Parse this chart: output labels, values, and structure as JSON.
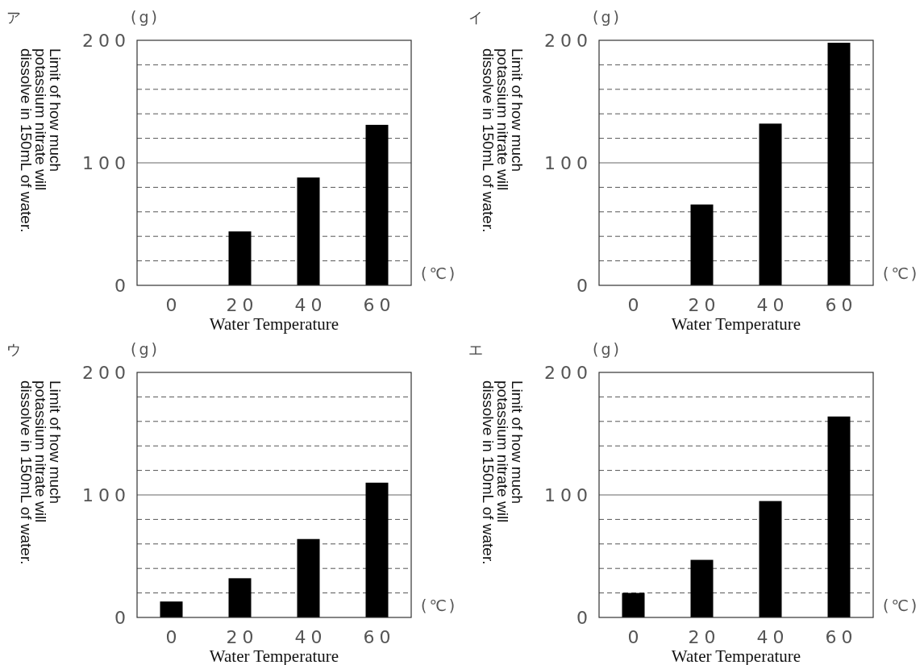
{
  "chart_data": [
    {
      "type": "bar",
      "title": "ア",
      "categories": [
        "0",
        "20",
        "40",
        "60"
      ],
      "values": [
        0,
        44,
        88,
        131
      ],
      "color": "#000000",
      "ref_lines": [
        {
          "axis": "y",
          "value": 100,
          "line_style": "solid"
        }
      ],
      "ylim": [
        0,
        200
      ],
      "yticks": [
        0,
        {
          "value": 20,
          "label": null
        },
        {
          "value": 40,
          "label": null
        },
        {
          "value": 60,
          "label": null
        },
        {
          "value": 80,
          "label": null
        },
        100,
        {
          "value": 120,
          "label": null
        },
        {
          "value": 140,
          "label": null
        },
        {
          "value": 160,
          "label": null
        },
        {
          "value": 180,
          "label": null
        },
        200
      ],
      "grid": "y",
      "xlabel": "Water Temperature",
      "ylabel": "Limit of how much potassium nitrate will dissolve in 150mL of water.",
      "annotations": [
        "(g)",
        "(℃)"
      ]
    },
    {
      "type": "bar",
      "title": "イ",
      "categories": [
        "0",
        "20",
        "40",
        "60"
      ],
      "values": [
        0,
        66,
        132,
        198
      ],
      "color": "#000000",
      "ref_lines": [
        {
          "axis": "y",
          "value": 100,
          "line_style": "solid"
        }
      ],
      "ylim": [
        0,
        200
      ],
      "yticks": [
        0,
        {
          "value": 20,
          "label": null
        },
        {
          "value": 40,
          "label": null
        },
        {
          "value": 60,
          "label": null
        },
        {
          "value": 80,
          "label": null
        },
        100,
        {
          "value": 120,
          "label": null
        },
        {
          "value": 140,
          "label": null
        },
        {
          "value": 160,
          "label": null
        },
        {
          "value": 180,
          "label": null
        },
        200
      ],
      "grid": "y",
      "xlabel": "Water Temperature",
      "ylabel": "Limit of how much potassium nitrate will dissolve in 150mL of water.",
      "annotations": [
        "(g)",
        "(℃)"
      ]
    },
    {
      "type": "bar",
      "title": "ウ",
      "categories": [
        "0",
        "20",
        "40",
        "60"
      ],
      "values": [
        13,
        32,
        64,
        110
      ],
      "color": "#000000",
      "ref_lines": [
        {
          "axis": "y",
          "value": 100,
          "line_style": "solid"
        }
      ],
      "ylim": [
        0,
        200
      ],
      "yticks": [
        0,
        {
          "value": 20,
          "label": null
        },
        {
          "value": 40,
          "label": null
        },
        {
          "value": 60,
          "label": null
        },
        {
          "value": 80,
          "label": null
        },
        100,
        {
          "value": 120,
          "label": null
        },
        {
          "value": 140,
          "label": null
        },
        {
          "value": 160,
          "label": null
        },
        {
          "value": 180,
          "label": null
        },
        200
      ],
      "grid": "y",
      "xlabel": "Water Temperature",
      "ylabel": "Limit of how much potassium nitrate will dissolve in 150mL of water.",
      "annotations": [
        "(g)",
        "(℃)"
      ]
    },
    {
      "type": "bar",
      "title": "エ",
      "categories": [
        "0",
        "20",
        "40",
        "60"
      ],
      "values": [
        20,
        47,
        95,
        164
      ],
      "color": "#000000",
      "ref_lines": [
        {
          "axis": "y",
          "value": 100,
          "line_style": "solid"
        }
      ],
      "ylim": [
        0,
        200
      ],
      "yticks": [
        0,
        {
          "value": 20,
          "label": null
        },
        {
          "value": 40,
          "label": null
        },
        {
          "value": 60,
          "label": null
        },
        {
          "value": 80,
          "label": null
        },
        100,
        {
          "value": 120,
          "label": null
        },
        {
          "value": 140,
          "label": null
        },
        {
          "value": 160,
          "label": null
        },
        {
          "value": 180,
          "label": null
        },
        200
      ],
      "grid": "y",
      "xlabel": "Water Temperature",
      "ylabel": "Limit of how much potassium nitrate will dissolve in 150mL of water.",
      "annotations": [
        "(g)",
        "(℃)"
      ]
    }
  ]
}
